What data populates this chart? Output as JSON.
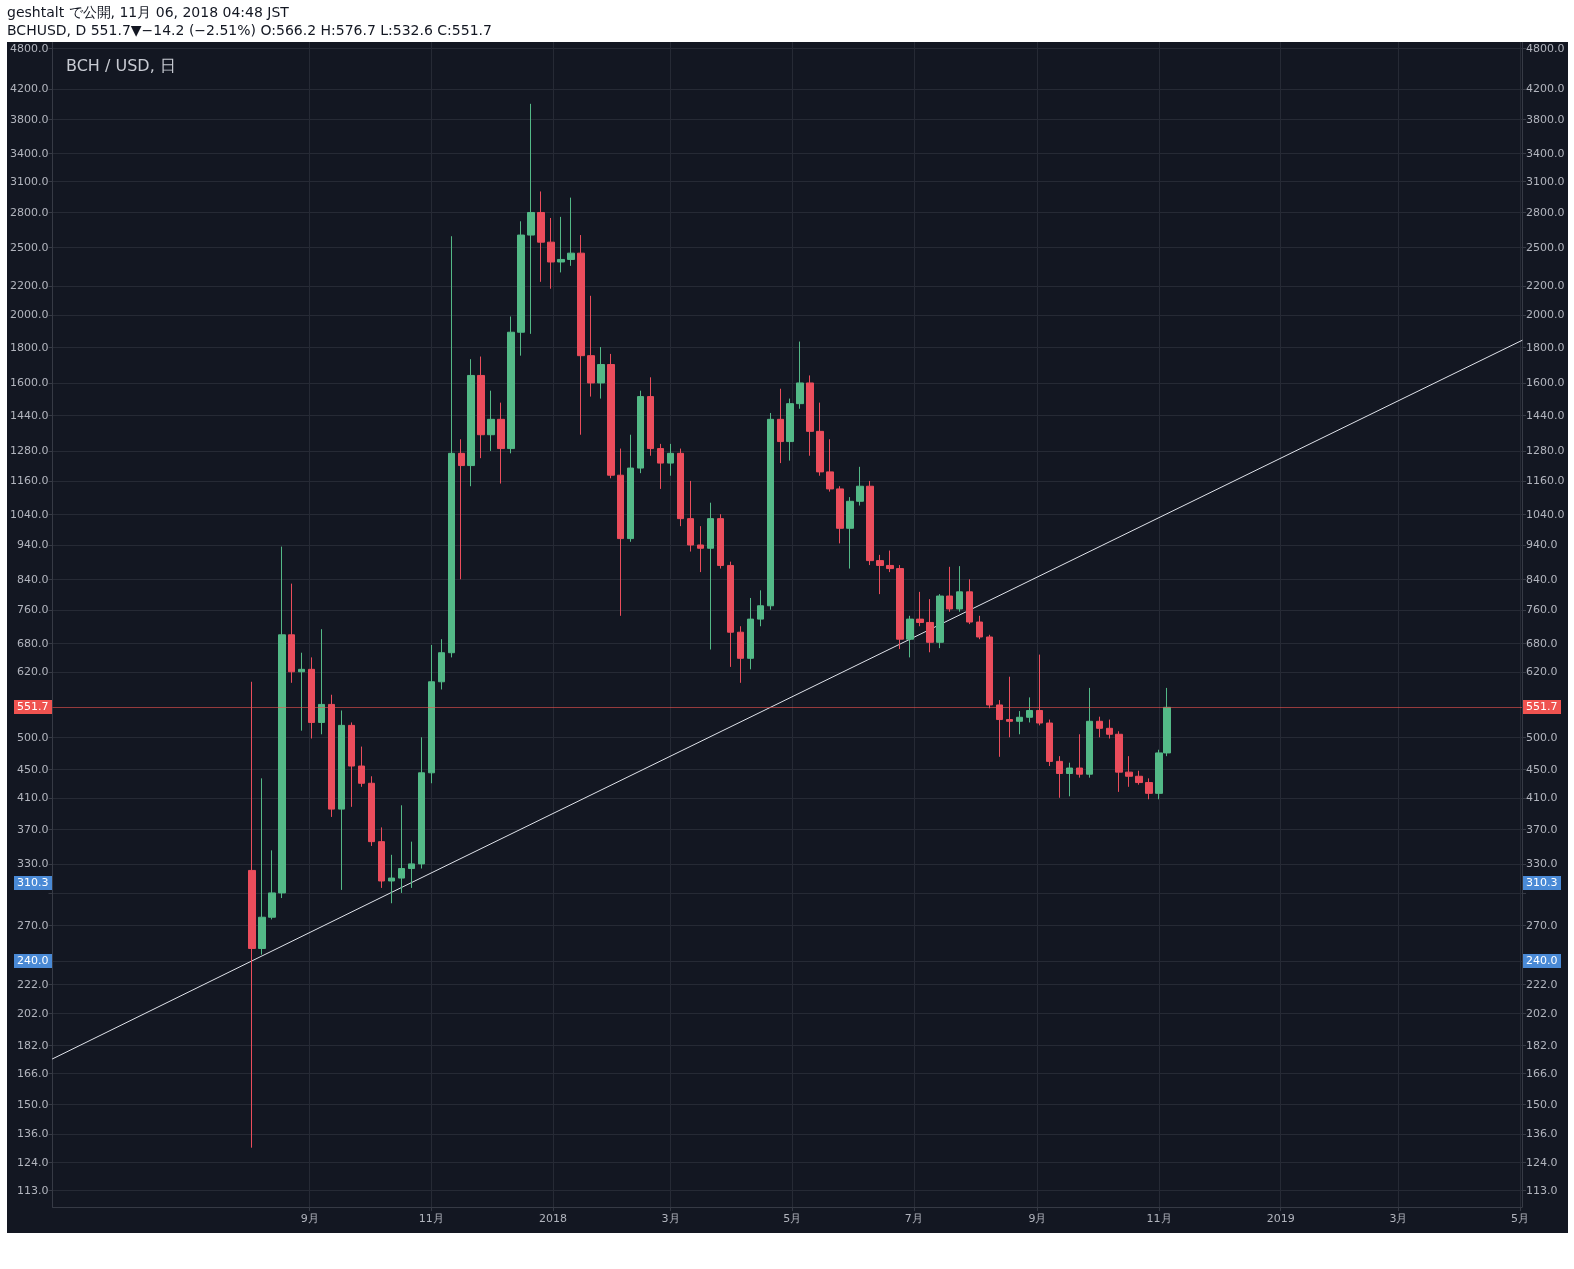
{
  "chart_data": {
    "type": "candlestick",
    "title": "BCH / USD, 日",
    "subtitle": "BCHUSD, D 551.7▼−14.2 (−2.51%) O:566.2 H:576.7 L:532.6 C:551.7",
    "annotations": [
      "geshtalt で公開, 11月 06, 2018 04:48 JST",
      "240.0",
      "310.3"
    ],
    "series": [
      {
        "x": [
          "2017-08-03",
          "2017-08-08",
          "2017-08-13",
          "2017-08-18",
          "2017-08-23",
          "2017-08-28",
          "2017-09-02",
          "2017-09-07",
          "2017-09-12",
          "2017-09-17",
          "2017-09-22",
          "2017-09-27",
          "2017-10-02",
          "2017-10-07",
          "2017-10-12",
          "2017-10-17",
          "2017-10-22",
          "2017-10-27",
          "2017-11-01",
          "2017-11-06",
          "2017-11-11",
          "2017-11-16",
          "2017-11-21",
          "2017-11-26",
          "2017-12-01",
          "2017-12-06",
          "2017-12-11",
          "2017-12-16",
          "2017-12-21",
          "2017-12-26",
          "2017-12-31",
          "2018-01-05",
          "2018-01-10",
          "2018-01-15",
          "2018-01-20",
          "2018-01-25",
          "2018-01-30",
          "2018-02-04",
          "2018-02-09",
          "2018-02-14",
          "2018-02-19",
          "2018-02-24",
          "2018-03-01",
          "2018-03-06",
          "2018-03-11",
          "2018-03-16",
          "2018-03-21",
          "2018-03-26",
          "2018-03-31",
          "2018-04-05",
          "2018-04-10",
          "2018-04-15",
          "2018-04-20",
          "2018-04-25",
          "2018-04-30",
          "2018-05-05",
          "2018-05-10",
          "2018-05-15",
          "2018-05-20",
          "2018-05-25",
          "2018-05-30",
          "2018-06-04",
          "2018-06-09",
          "2018-06-14",
          "2018-06-19",
          "2018-06-24",
          "2018-06-29",
          "2018-07-04",
          "2018-07-09",
          "2018-07-14",
          "2018-07-19",
          "2018-07-24",
          "2018-07-29",
          "2018-08-03",
          "2018-08-08",
          "2018-08-13",
          "2018-08-18",
          "2018-08-23",
          "2018-08-28",
          "2018-09-02",
          "2018-09-07",
          "2018-09-12",
          "2018-09-17",
          "2018-09-22",
          "2018-09-27",
          "2018-10-02",
          "2018-10-07",
          "2018-10-12",
          "2018-10-17",
          "2018-10-22",
          "2018-10-27",
          "2018-11-01",
          "2018-11-05"
        ],
        "ohlc": [
          [
            323,
            600,
            130,
            250
          ],
          [
            250,
            437,
            245,
            277
          ],
          [
            277,
            345,
            275,
            300
          ],
          [
            300,
            935,
            295,
            700
          ],
          [
            700,
            828,
            598,
            620
          ],
          [
            620,
            660,
            511,
            625
          ],
          [
            625,
            650,
            498,
            525
          ],
          [
            525,
            713,
            505,
            557
          ],
          [
            557,
            575,
            385,
            395
          ],
          [
            395,
            546,
            303,
            520
          ],
          [
            520,
            525,
            398,
            455
          ],
          [
            455,
            485,
            425,
            430
          ],
          [
            430,
            440,
            350,
            355
          ],
          [
            355,
            372,
            305,
            312
          ],
          [
            312,
            340,
            290,
            315
          ],
          [
            315,
            400,
            300,
            325
          ],
          [
            325,
            355,
            305,
            330
          ],
          [
            330,
            500,
            325,
            445
          ],
          [
            445,
            677,
            430,
            600
          ],
          [
            600,
            690,
            585,
            660
          ],
          [
            660,
            2590,
            650,
            1270
          ],
          [
            1270,
            1330,
            840,
            1220
          ],
          [
            1220,
            1730,
            1140,
            1640
          ],
          [
            1640,
            1745,
            1250,
            1350
          ],
          [
            1350,
            1560,
            1280,
            1420
          ],
          [
            1420,
            1500,
            1150,
            1290
          ],
          [
            1290,
            1990,
            1270,
            1890
          ],
          [
            1890,
            2720,
            1750,
            2600
          ],
          [
            2600,
            4000,
            1880,
            2800
          ],
          [
            2800,
            3000,
            2230,
            2540
          ],
          [
            2540,
            2750,
            2180,
            2380
          ],
          [
            2380,
            2760,
            2300,
            2400
          ],
          [
            2400,
            2940,
            2350,
            2450
          ],
          [
            2450,
            2600,
            1350,
            1750
          ],
          [
            1750,
            2130,
            1530,
            1600
          ],
          [
            1600,
            1800,
            1520,
            1700
          ],
          [
            1700,
            1760,
            1170,
            1182
          ],
          [
            1182,
            1290,
            745,
            960
          ],
          [
            960,
            1350,
            950,
            1210
          ],
          [
            1210,
            1560,
            1190,
            1530
          ],
          [
            1530,
            1630,
            1260,
            1290
          ],
          [
            1290,
            1310,
            1130,
            1230
          ],
          [
            1230,
            1310,
            1180,
            1270
          ],
          [
            1270,
            1290,
            1000,
            1025
          ],
          [
            1025,
            1160,
            920,
            940
          ],
          [
            940,
            1000,
            860,
            930
          ],
          [
            930,
            1080,
            667,
            1025
          ],
          [
            1025,
            1040,
            870,
            879
          ],
          [
            879,
            890,
            630,
            706
          ],
          [
            706,
            720,
            598,
            648
          ],
          [
            648,
            790,
            625,
            737
          ],
          [
            737,
            810,
            720,
            770
          ],
          [
            770,
            1450,
            760,
            1420
          ],
          [
            1420,
            1570,
            1230,
            1320
          ],
          [
            1320,
            1520,
            1240,
            1495
          ],
          [
            1495,
            1833,
            1470,
            1600
          ],
          [
            1600,
            1640,
            1260,
            1365
          ],
          [
            1365,
            1500,
            1180,
            1195
          ],
          [
            1195,
            1330,
            1120,
            1130
          ],
          [
            1130,
            1140,
            945,
            993
          ],
          [
            993,
            1100,
            870,
            1085
          ],
          [
            1085,
            1215,
            1070,
            1140
          ],
          [
            1140,
            1160,
            880,
            893
          ],
          [
            893,
            910,
            800,
            879
          ],
          [
            879,
            923,
            860,
            870
          ],
          [
            870,
            880,
            668,
            690
          ],
          [
            690,
            745,
            650,
            737
          ],
          [
            737,
            806,
            720,
            729
          ],
          [
            729,
            787,
            661,
            683
          ],
          [
            683,
            800,
            670,
            795
          ],
          [
            795,
            875,
            755,
            762
          ],
          [
            762,
            877,
            755,
            806
          ],
          [
            806,
            840,
            725,
            730
          ],
          [
            730,
            745,
            690,
            695
          ],
          [
            695,
            700,
            550,
            556
          ],
          [
            556,
            565,
            469,
            530
          ],
          [
            530,
            610,
            500,
            527
          ],
          [
            527,
            545,
            505,
            534
          ],
          [
            534,
            570,
            525,
            546
          ],
          [
            546,
            656,
            520,
            524
          ],
          [
            524,
            530,
            455,
            462
          ],
          [
            462,
            470,
            410,
            444
          ],
          [
            444,
            460,
            412,
            452
          ],
          [
            452,
            505,
            438,
            443
          ],
          [
            443,
            588,
            438,
            527
          ],
          [
            527,
            535,
            500,
            515
          ],
          [
            515,
            530,
            498,
            505
          ],
          [
            505,
            510,
            418,
            446
          ],
          [
            446,
            470,
            425,
            440
          ],
          [
            440,
            448,
            428,
            431
          ],
          [
            431,
            437,
            408,
            416
          ],
          [
            416,
            480,
            408,
            475
          ],
          [
            475,
            588,
            470,
            551.7
          ]
        ],
        "colors": [
          "#eb4d5c",
          "#53b987",
          "#53b987",
          "#53b987",
          "#eb4d5c",
          "#53b987",
          "#eb4d5c",
          "#53b987",
          "#eb4d5c",
          "#53b987",
          "#eb4d5c",
          "#eb4d5c",
          "#eb4d5c",
          "#eb4d5c",
          "#53b987",
          "#53b987",
          "#53b987",
          "#53b987",
          "#53b987",
          "#53b987",
          "#53b987",
          "#eb4d5c",
          "#53b987",
          "#eb4d5c",
          "#53b987",
          "#eb4d5c",
          "#53b987",
          "#53b987",
          "#53b987",
          "#eb4d5c",
          "#eb4d5c",
          "#53b987",
          "#53b987",
          "#eb4d5c",
          "#eb4d5c",
          "#53b987",
          "#eb4d5c",
          "#eb4d5c",
          "#53b987",
          "#53b987",
          "#eb4d5c",
          "#eb4d5c",
          "#53b987",
          "#eb4d5c",
          "#eb4d5c",
          "#eb4d5c",
          "#53b987",
          "#eb4d5c",
          "#eb4d5c",
          "#eb4d5c",
          "#53b987",
          "#53b987",
          "#53b987",
          "#eb4d5c",
          "#53b987",
          "#53b987",
          "#eb4d5c",
          "#eb4d5c",
          "#eb4d5c",
          "#eb4d5c",
          "#53b987",
          "#53b987",
          "#eb4d5c",
          "#eb4d5c",
          "#eb4d5c",
          "#eb4d5c",
          "#53b987",
          "#eb4d5c",
          "#eb4d5c",
          "#53b987",
          "#eb4d5c",
          "#53b987",
          "#eb4d5c",
          "#eb4d5c",
          "#eb4d5c",
          "#eb4d5c",
          "#eb4d5c",
          "#53b987",
          "#53b987",
          "#eb4d5c",
          "#eb4d5c",
          "#eb4d5c",
          "#53b987",
          "#eb4d5c",
          "#53b987",
          "#eb4d5c",
          "#eb4d5c",
          "#eb4d5c",
          "#eb4d5c",
          "#eb4d5c",
          "#eb4d5c",
          "#53b987",
          "#53b987"
        ]
      },
      {
        "type": "line",
        "x": [
          "2017-04-25",
          "2017-08-03",
          "2017-10-22",
          "2019-05-02"
        ],
        "values": [
          174,
          240.0,
          310.3,
          1840
        ],
        "color": "#e0e3eb"
      }
    ],
    "xlim": [
      "2017-04-25",
      "2019-05-02"
    ],
    "xticks": [
      {
        "value": "2017-09-01",
        "label": "9月"
      },
      {
        "value": "2017-11-01",
        "label": "11月"
      },
      {
        "value": "2018-01-01",
        "label": "2018"
      },
      {
        "value": "2018-03-01",
        "label": "3月"
      },
      {
        "value": "2018-05-01",
        "label": "5月"
      },
      {
        "value": "2018-07-01",
        "label": "7月"
      },
      {
        "value": "2018-09-01",
        "label": "9月"
      },
      {
        "value": "2018-11-01",
        "label": "11月"
      },
      {
        "value": "2019-01-01",
        "label": "2019"
      },
      {
        "value": "2019-03-01",
        "label": "3月"
      },
      {
        "value": "2019-05-01",
        "label": "5月"
      }
    ],
    "ylim": [
      107,
      4900
    ],
    "yticks": [
      {
        "value": 4800,
        "label": "4800.0"
      },
      {
        "value": 4200,
        "label": "4200.0"
      },
      {
        "value": 3800,
        "label": "3800.0"
      },
      {
        "value": 3400,
        "label": "3400.0"
      },
      {
        "value": 3100,
        "label": "3100.0"
      },
      {
        "value": 2800,
        "label": "2800.0"
      },
      {
        "value": 2500,
        "label": "2500.0"
      },
      {
        "value": 2200,
        "label": "2200.0"
      },
      {
        "value": 2000,
        "label": "2000.0"
      },
      {
        "value": 1800,
        "label": "1800.0"
      },
      {
        "value": 1600,
        "label": "1600.0"
      },
      {
        "value": 1440,
        "label": "1440.0"
      },
      {
        "value": 1280,
        "label": "1280.0"
      },
      {
        "value": 1160,
        "label": "1160.0"
      },
      {
        "value": 1040,
        "label": "1040.0"
      },
      {
        "value": 940,
        "label": "940.0"
      },
      {
        "value": 840,
        "label": "840.0"
      },
      {
        "value": 760,
        "label": "760.0"
      },
      {
        "value": 680,
        "label": "680.0"
      },
      {
        "value": 620,
        "label": "620.0"
      },
      {
        "value": 500,
        "label": "500.0"
      },
      {
        "value": 450,
        "label": "450.0"
      },
      {
        "value": 410,
        "label": "410.0"
      },
      {
        "value": 370,
        "label": "370.0"
      },
      {
        "value": 330,
        "label": "330.0"
      },
      {
        "value": 300,
        "label": null
      },
      {
        "value": 270,
        "label": "270.0"
      },
      {
        "value": 240,
        "label": null
      },
      {
        "value": 222,
        "label": "222.0"
      },
      {
        "value": 202,
        "label": "202.0"
      },
      {
        "value": 182,
        "label": "182.0"
      },
      {
        "value": 166,
        "label": "166.0"
      },
      {
        "value": 150,
        "label": "150.0"
      },
      {
        "value": 136,
        "label": "136.0"
      },
      {
        "value": 124,
        "label": "124.0"
      },
      {
        "value": 113,
        "label": "113.0"
      }
    ],
    "ref_lines": [
      {
        "axis": "y",
        "value": 551.7,
        "label": "551.7",
        "color": "#ef5350"
      }
    ],
    "log": true,
    "grid": true,
    "marker": "none"
  }
}
